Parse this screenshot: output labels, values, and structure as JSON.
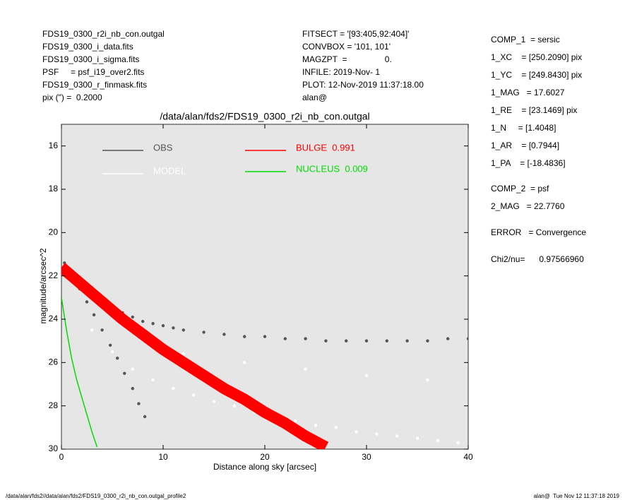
{
  "header": {
    "left": [
      "FDS19_0300_r2i_nb_con.outgal",
      "FDS19_0300_i_data.fits",
      "FDS19_0300_i_sigma.fits",
      "PSF     = psf_i19_over2.fits",
      "FDS19_0300_r_finmask.fits",
      "pix (\") =  0.2000"
    ],
    "middle": [
      "FITSECT = '[93:405,92:404]'",
      "CONVBOX = '101, 101'",
      "MAGZPT  =                0.",
      "INFILE: 2019-Nov- 1",
      "PLOT: 12-Nov-2019 11:37:18.00",
      "alan@"
    ],
    "right": [
      "COMP_1  = sersic",
      "1_XC    = [250.2090] pix",
      "1_YC    = [249.8430] pix",
      "1_MAG   = 17.6027",
      "1_RE    = [23.1469] pix",
      "1_N     = [1.4048]",
      "1_AR    = [0.7944]",
      "1_PA    = [-18.4836]",
      "COMP_2  = psf",
      "2_MAG   = 22.7760",
      "ERROR   = Convergence",
      "Chi2/nu=      0.97566960"
    ]
  },
  "footer": {
    "left": "/data/alan/fds2//data/alan/fds2/FDS19_0300_r2i_nb_con.outgal_profile2",
    "right": "alan@  Tue Nov 12 11:37:18 2019"
  },
  "chart_data": {
    "type": "scatter",
    "title": "/data/alan/fds2/FDS19_0300_r2i_nb_con.outgal",
    "xlabel": "Distance along sky [arcsec]",
    "ylabel": "magnitude/arcsec^2",
    "xlim": [
      0,
      40
    ],
    "ylim": [
      30,
      15
    ],
    "xticks": [
      0,
      10,
      20,
      30,
      40
    ],
    "yticks": [
      16,
      18,
      20,
      22,
      24,
      26,
      28,
      30
    ],
    "background": "#e6e6e6",
    "series": [
      {
        "name": "OBS",
        "color": "#555555",
        "mode": "markers",
        "x": [
          0.3,
          0.8,
          1.5,
          2.2,
          3,
          4,
          5,
          6,
          7,
          8,
          9,
          10,
          11,
          12,
          14,
          16,
          18,
          20,
          22,
          24,
          26,
          28,
          30,
          32,
          34,
          36,
          38,
          40,
          1,
          1.8,
          2.5,
          3.2,
          4,
          4.8,
          5.5,
          6.2,
          7,
          7.6,
          8.2
        ],
        "values": [
          21.4,
          21.7,
          22.0,
          22.4,
          22.7,
          23.1,
          23.4,
          23.7,
          23.9,
          24.1,
          24.2,
          24.3,
          24.4,
          24.5,
          24.6,
          24.7,
          24.8,
          24.8,
          24.9,
          24.9,
          25.0,
          25.0,
          25.0,
          25.0,
          25.0,
          25.0,
          24.9,
          24.9,
          22.0,
          22.6,
          23.2,
          23.8,
          24.5,
          25.2,
          25.8,
          26.5,
          27.2,
          27.9,
          28.5
        ]
      },
      {
        "name": "MODEL",
        "color": "#ffffff",
        "mode": "markers",
        "x": [
          3,
          5,
          7,
          9,
          11,
          13,
          15,
          17,
          19,
          21,
          23,
          25,
          27,
          29,
          31,
          33,
          35,
          37,
          39,
          12,
          18,
          24,
          30,
          36
        ],
        "values": [
          24.5,
          25.5,
          26.3,
          26.8,
          27.2,
          27.5,
          27.8,
          28.0,
          28.3,
          28.5,
          28.7,
          28.9,
          29.0,
          29.2,
          29.3,
          29.4,
          29.5,
          29.6,
          29.7,
          25.6,
          26.0,
          26.3,
          26.6,
          26.8
        ]
      },
      {
        "name": "BULGE  0.991",
        "color": "#ff0000",
        "mode": "band",
        "x": [
          0,
          2,
          4,
          6,
          8,
          10,
          12,
          14,
          16,
          18,
          20,
          22,
          24,
          26
        ],
        "values": [
          21.6,
          22.4,
          23.2,
          24.0,
          24.7,
          25.4,
          26.0,
          26.6,
          27.2,
          27.7,
          28.3,
          28.8,
          29.4,
          29.9
        ]
      },
      {
        "name": "NUCLEUS  0.009",
        "color": "#00dd00",
        "mode": "line",
        "x": [
          0,
          0.5,
          1,
          1.5,
          2,
          2.5,
          3,
          3.5
        ],
        "values": [
          23.0,
          24.5,
          25.8,
          26.8,
          27.6,
          28.4,
          29.2,
          29.9
        ]
      }
    ]
  }
}
